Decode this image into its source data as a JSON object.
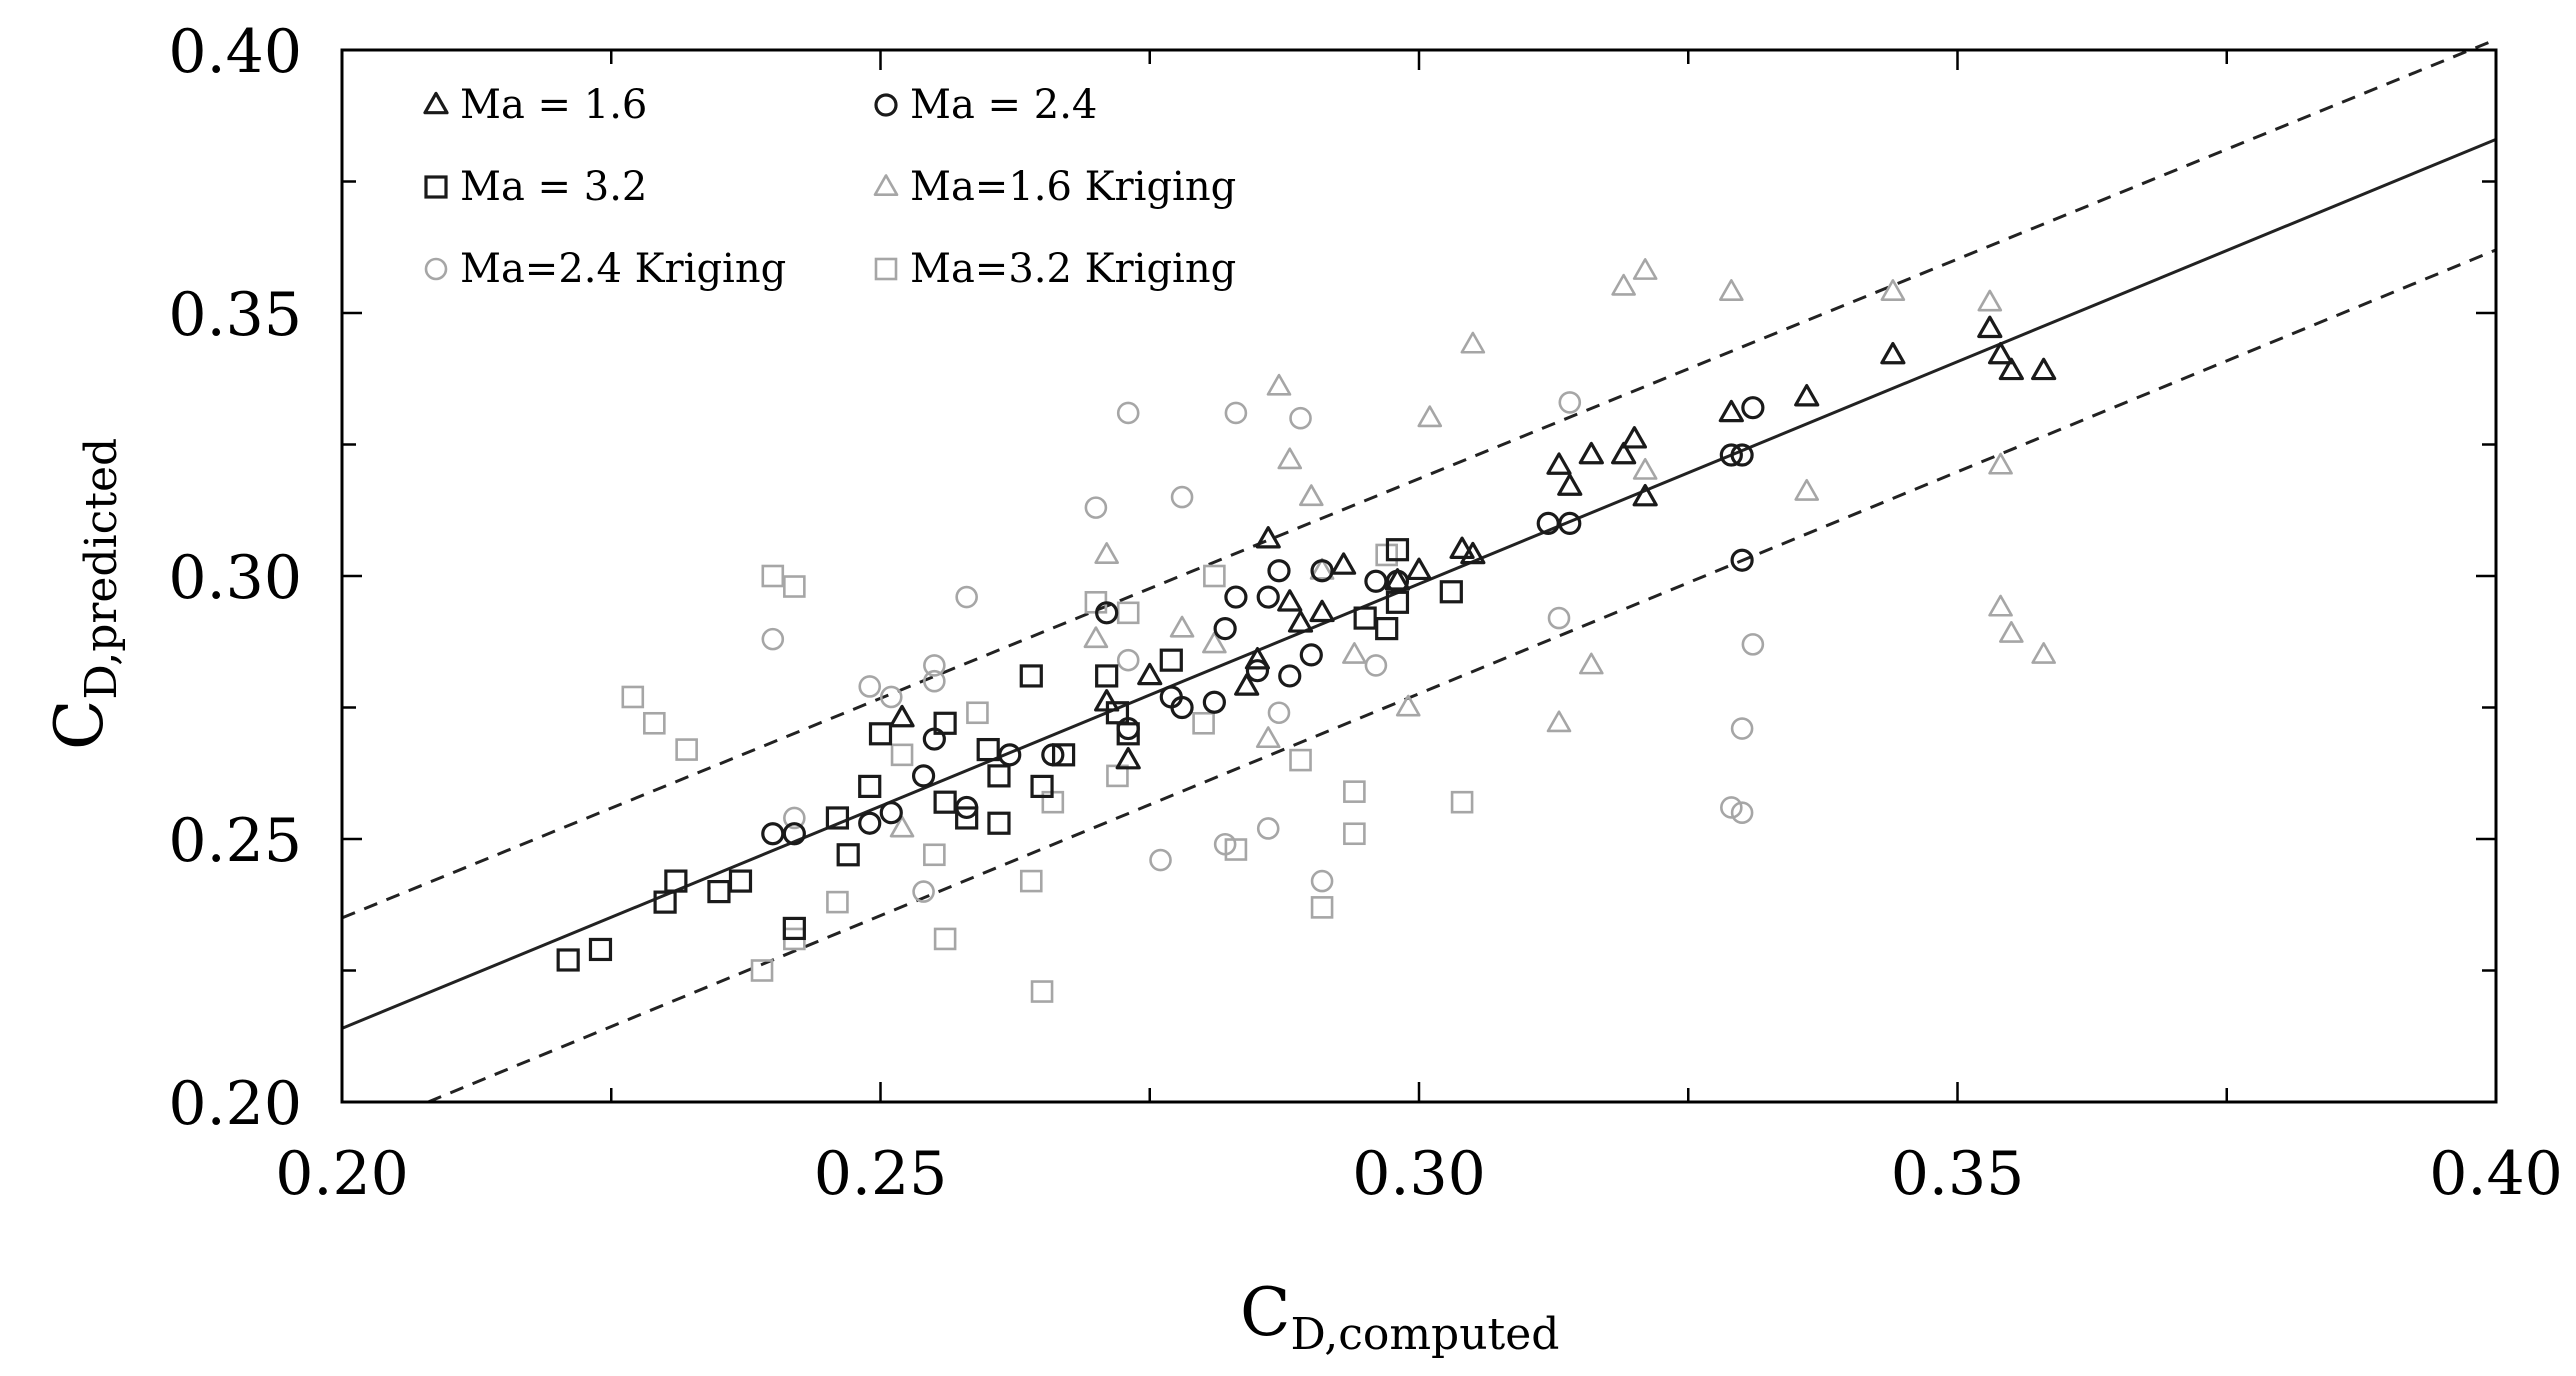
{
  "chart_data": {
    "type": "scatter",
    "title": "",
    "xlabel": {
      "main": "C",
      "sub": "D,computed"
    },
    "ylabel": {
      "main": "C",
      "sub": "D,predicted"
    },
    "xlim": [
      0.2,
      0.4
    ],
    "ylim": [
      0.2,
      0.4
    ],
    "x_ticks": [
      0.2,
      0.25,
      0.3,
      0.35,
      0.4
    ],
    "y_ticks": [
      0.2,
      0.25,
      0.3,
      0.35,
      0.4
    ],
    "x_tick_labels": [
      "0.20",
      "0.25",
      "0.30",
      "0.35",
      "0.40"
    ],
    "y_tick_labels": [
      "0.20",
      "0.25",
      "0.30",
      "0.35",
      "0.40"
    ],
    "minor_step": 0.025,
    "grid": false,
    "legend_position": "top-left",
    "reference_lines": [
      {
        "name": "fit",
        "style": "solid",
        "x": [
          0.2,
          0.4
        ],
        "y": [
          0.214,
          0.383
        ]
      },
      {
        "name": "upper-bound",
        "style": "dashed",
        "x": [
          0.2,
          0.4
        ],
        "y": [
          0.235,
          0.402
        ]
      },
      {
        "name": "lower-bound",
        "style": "dashed",
        "x": [
          0.208,
          0.4
        ],
        "y": [
          0.2,
          0.362
        ]
      }
    ],
    "series": [
      {
        "name": "Ma = 1.6",
        "marker": "triangle",
        "color": "#1a1a1a",
        "points": [
          [
            0.252,
            0.273
          ],
          [
            0.271,
            0.276
          ],
          [
            0.273,
            0.265
          ],
          [
            0.275,
            0.281
          ],
          [
            0.284,
            0.279
          ],
          [
            0.285,
            0.284
          ],
          [
            0.286,
            0.307
          ],
          [
            0.288,
            0.295
          ],
          [
            0.289,
            0.291
          ],
          [
            0.291,
            0.293
          ],
          [
            0.293,
            0.302
          ],
          [
            0.298,
            0.299
          ],
          [
            0.3,
            0.301
          ],
          [
            0.304,
            0.305
          ],
          [
            0.305,
            0.304
          ],
          [
            0.313,
            0.321
          ],
          [
            0.314,
            0.317
          ],
          [
            0.316,
            0.323
          ],
          [
            0.319,
            0.323
          ],
          [
            0.32,
            0.326
          ],
          [
            0.321,
            0.315
          ],
          [
            0.329,
            0.331
          ],
          [
            0.336,
            0.334
          ],
          [
            0.344,
            0.342
          ],
          [
            0.353,
            0.347
          ],
          [
            0.354,
            0.342
          ],
          [
            0.355,
            0.339
          ],
          [
            0.358,
            0.339
          ]
        ]
      },
      {
        "name": "Ma = 2.4",
        "marker": "circle",
        "color": "#1a1a1a",
        "points": [
          [
            0.24,
            0.251
          ],
          [
            0.242,
            0.251
          ],
          [
            0.249,
            0.253
          ],
          [
            0.251,
            0.255
          ],
          [
            0.254,
            0.262
          ],
          [
            0.255,
            0.269
          ],
          [
            0.258,
            0.256
          ],
          [
            0.262,
            0.266
          ],
          [
            0.266,
            0.266
          ],
          [
            0.271,
            0.293
          ],
          [
            0.273,
            0.271
          ],
          [
            0.277,
            0.277
          ],
          [
            0.278,
            0.275
          ],
          [
            0.281,
            0.276
          ],
          [
            0.282,
            0.29
          ],
          [
            0.283,
            0.296
          ],
          [
            0.285,
            0.282
          ],
          [
            0.286,
            0.296
          ],
          [
            0.287,
            0.301
          ],
          [
            0.288,
            0.281
          ],
          [
            0.29,
            0.285
          ],
          [
            0.291,
            0.301
          ],
          [
            0.296,
            0.299
          ],
          [
            0.298,
            0.299
          ],
          [
            0.312,
            0.31
          ],
          [
            0.314,
            0.31
          ],
          [
            0.329,
            0.323
          ],
          [
            0.33,
            0.323
          ],
          [
            0.33,
            0.303
          ],
          [
            0.331,
            0.332
          ]
        ]
      },
      {
        "name": "Ma = 3.2",
        "marker": "square",
        "color": "#1a1a1a",
        "points": [
          [
            0.221,
            0.227
          ],
          [
            0.224,
            0.229
          ],
          [
            0.23,
            0.238
          ],
          [
            0.231,
            0.242
          ],
          [
            0.235,
            0.24
          ],
          [
            0.237,
            0.242
          ],
          [
            0.242,
            0.233
          ],
          [
            0.246,
            0.254
          ],
          [
            0.247,
            0.247
          ],
          [
            0.249,
            0.26
          ],
          [
            0.25,
            0.27
          ],
          [
            0.256,
            0.272
          ],
          [
            0.256,
            0.257
          ],
          [
            0.258,
            0.254
          ],
          [
            0.26,
            0.267
          ],
          [
            0.261,
            0.253
          ],
          [
            0.261,
            0.262
          ],
          [
            0.264,
            0.281
          ],
          [
            0.265,
            0.26
          ],
          [
            0.267,
            0.266
          ],
          [
            0.271,
            0.281
          ],
          [
            0.272,
            0.274
          ],
          [
            0.273,
            0.27
          ],
          [
            0.277,
            0.284
          ],
          [
            0.295,
            0.292
          ],
          [
            0.297,
            0.29
          ],
          [
            0.298,
            0.305
          ],
          [
            0.298,
            0.295
          ],
          [
            0.303,
            0.297
          ]
        ]
      },
      {
        "name": "Ma=1.6 Kriging",
        "marker": "triangle",
        "color": "#a6a6a6",
        "points": [
          [
            0.252,
            0.252
          ],
          [
            0.27,
            0.288
          ],
          [
            0.271,
            0.304
          ],
          [
            0.278,
            0.29
          ],
          [
            0.281,
            0.287
          ],
          [
            0.286,
            0.269
          ],
          [
            0.287,
            0.336
          ],
          [
            0.288,
            0.322
          ],
          [
            0.29,
            0.315
          ],
          [
            0.291,
            0.301
          ],
          [
            0.294,
            0.285
          ],
          [
            0.299,
            0.275
          ],
          [
            0.301,
            0.33
          ],
          [
            0.305,
            0.344
          ],
          [
            0.313,
            0.272
          ],
          [
            0.316,
            0.283
          ],
          [
            0.319,
            0.355
          ],
          [
            0.321,
            0.358
          ],
          [
            0.321,
            0.32
          ],
          [
            0.329,
            0.354
          ],
          [
            0.336,
            0.316
          ],
          [
            0.344,
            0.354
          ],
          [
            0.353,
            0.352
          ],
          [
            0.354,
            0.321
          ],
          [
            0.354,
            0.294
          ],
          [
            0.355,
            0.289
          ],
          [
            0.358,
            0.285
          ]
        ]
      },
      {
        "name": "Ma=2.4 Kriging",
        "marker": "circle",
        "color": "#a6a6a6",
        "points": [
          [
            0.24,
            0.288
          ],
          [
            0.242,
            0.254
          ],
          [
            0.249,
            0.279
          ],
          [
            0.251,
            0.277
          ],
          [
            0.254,
            0.24
          ],
          [
            0.255,
            0.28
          ],
          [
            0.255,
            0.283
          ],
          [
            0.258,
            0.296
          ],
          [
            0.27,
            0.313
          ],
          [
            0.273,
            0.331
          ],
          [
            0.273,
            0.284
          ],
          [
            0.276,
            0.246
          ],
          [
            0.278,
            0.315
          ],
          [
            0.282,
            0.249
          ],
          [
            0.283,
            0.331
          ],
          [
            0.286,
            0.252
          ],
          [
            0.287,
            0.274
          ],
          [
            0.289,
            0.33
          ],
          [
            0.291,
            0.242
          ],
          [
            0.296,
            0.283
          ],
          [
            0.313,
            0.292
          ],
          [
            0.314,
            0.333
          ],
          [
            0.329,
            0.256
          ],
          [
            0.33,
            0.255
          ],
          [
            0.33,
            0.271
          ],
          [
            0.331,
            0.287
          ],
          [
            0.331,
            0.332
          ]
        ]
      },
      {
        "name": "Ma=3.2 Kriging",
        "marker": "square",
        "color": "#a6a6a6",
        "points": [
          [
            0.227,
            0.277
          ],
          [
            0.229,
            0.272
          ],
          [
            0.232,
            0.267
          ],
          [
            0.239,
            0.225
          ],
          [
            0.24,
            0.3
          ],
          [
            0.242,
            0.231
          ],
          [
            0.242,
            0.298
          ],
          [
            0.246,
            0.238
          ],
          [
            0.252,
            0.266
          ],
          [
            0.255,
            0.247
          ],
          [
            0.256,
            0.231
          ],
          [
            0.259,
            0.274
          ],
          [
            0.264,
            0.242
          ],
          [
            0.265,
            0.221
          ],
          [
            0.266,
            0.257
          ],
          [
            0.27,
            0.295
          ],
          [
            0.272,
            0.262
          ],
          [
            0.273,
            0.293
          ],
          [
            0.28,
            0.272
          ],
          [
            0.281,
            0.3
          ],
          [
            0.283,
            0.248
          ],
          [
            0.289,
            0.265
          ],
          [
            0.291,
            0.237
          ],
          [
            0.294,
            0.251
          ],
          [
            0.294,
            0.259
          ],
          [
            0.297,
            0.304
          ],
          [
            0.304,
            0.257
          ]
        ]
      }
    ]
  }
}
